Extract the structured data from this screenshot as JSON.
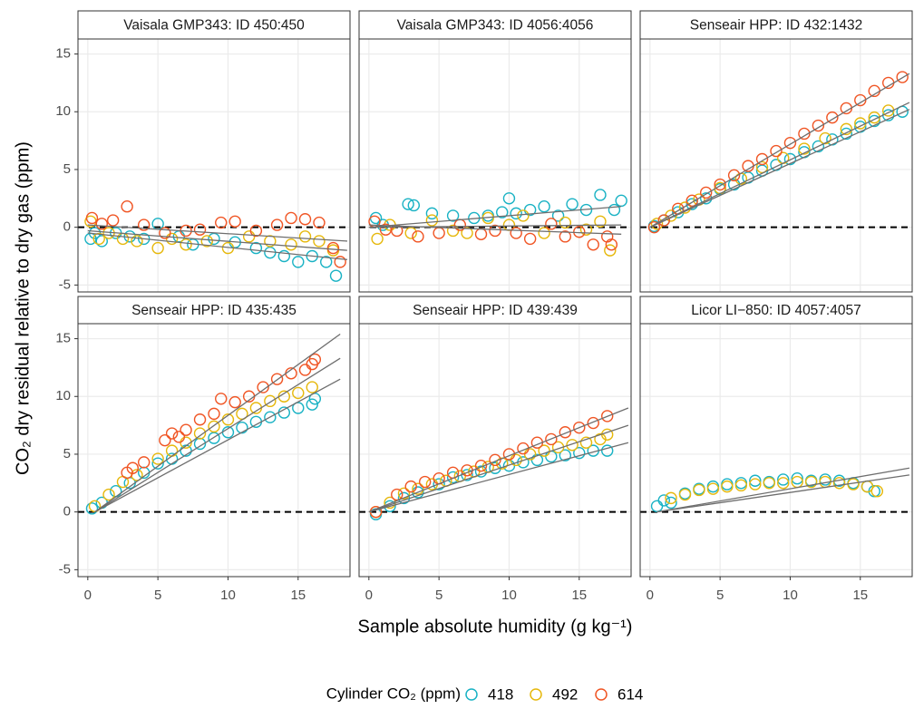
{
  "chart_data": {
    "type": "scatter",
    "x_label": "Sample absolute humidity (g kg⁻¹)",
    "y_label": "CO₂ dry residual relative to dry gas (ppm)",
    "legend_title": "Cylinder CO₂ (ppm)",
    "xlim": [
      -0.7,
      18.7
    ],
    "ylim": [
      -5.6,
      16.3
    ],
    "xticks": [
      0,
      5,
      10,
      15
    ],
    "yticks": [
      -5,
      0,
      5,
      10,
      15
    ],
    "grid": true,
    "hline": 0,
    "series": [
      {
        "name": "418",
        "color": "#19b2c4"
      },
      {
        "name": "492",
        "color": "#e6b80c"
      },
      {
        "name": "614",
        "color": "#f05524"
      }
    ],
    "panels": [
      {
        "title": "Vaisala GMP343: ID 450:450",
        "data": [
          {
            "x": [
              0.2,
              0.5,
              1,
              2,
              3,
              4,
              5,
              6.5,
              7.5,
              9,
              10.5,
              12,
              13,
              14,
              15,
              16,
              17,
              17.7
            ],
            "values": [
              -1,
              -0.5,
              -1.2,
              -0.5,
              -0.8,
              -1,
              0.3,
              -0.8,
              -1.5,
              -1,
              -1.3,
              -1.8,
              -2.2,
              -2.5,
              -3,
              -2.5,
              -3,
              -4.2
            ],
            "fit_x": [
              0,
              18.5
            ],
            "fit_values": [
              -0.5,
              -2.8
            ]
          },
          {
            "x": [
              0.2,
              0.8,
              1.5,
              2.5,
              3.5,
              5,
              6,
              7,
              8.5,
              10,
              11.5,
              13,
              14.5,
              15.5,
              16.5,
              17.5
            ],
            "values": [
              0.5,
              -1,
              -0.5,
              -1,
              -1.2,
              -1.8,
              -1,
              -1.5,
              -1.2,
              -1.8,
              -0.8,
              -1.2,
              -1.5,
              -0.8,
              -1.2,
              -2
            ],
            "fit_x": [
              0,
              18.5
            ],
            "fit_values": [
              -0.3,
              -2
            ]
          },
          {
            "x": [
              0.3,
              1,
              1.8,
              2.8,
              4,
              5.5,
              7,
              8,
              9.5,
              10.5,
              12,
              13.5,
              14.5,
              15.5,
              16.5,
              17.5,
              18
            ],
            "values": [
              0.8,
              0.3,
              0.6,
              1.8,
              0.2,
              -0.5,
              -0.3,
              -0.2,
              0.4,
              0.5,
              -0.3,
              0.2,
              0.8,
              0.7,
              0.4,
              -1.8,
              -3
            ],
            "fit_x": [
              0,
              18.5
            ],
            "fit_values": [
              0.2,
              -1.2
            ]
          }
        ]
      },
      {
        "title": "Vaisala GMP343: ID 4056:4056",
        "data": [
          {
            "x": [
              0.5,
              1,
              2.8,
              3.2,
              4.5,
              6,
              7.5,
              8.5,
              9.5,
              10,
              10.5,
              11.5,
              12.5,
              13.5,
              14.5,
              15.5,
              16.5,
              17.5,
              18
            ],
            "values": [
              0.8,
              0.2,
              2,
              1.9,
              1.2,
              1,
              0.8,
              1,
              1.3,
              2.5,
              1.2,
              1.5,
              1.8,
              1,
              2,
              1.5,
              2.8,
              1.5,
              2.3
            ],
            "fit_x": [
              0,
              18
            ],
            "fit_values": [
              0,
              1.8
            ]
          },
          {
            "x": [
              0.6,
              1.5,
              3,
              4.5,
              6,
              7,
              8.5,
              10,
              11,
              12.5,
              14,
              15.5,
              16.5,
              17.2
            ],
            "values": [
              -1,
              0.2,
              -0.5,
              0.6,
              -0.3,
              -0.5,
              0.8,
              0.2,
              1,
              -0.5,
              0.4,
              -0.2,
              0.5,
              -2
            ],
            "fit_x": [
              0,
              18
            ],
            "fit_values": [
              0,
              0.2
            ]
          },
          {
            "x": [
              0.4,
              1.2,
              2,
              3.5,
              5,
              6.5,
              8,
              9,
              10.5,
              11.5,
              13,
              14,
              15,
              16,
              17,
              17.3
            ],
            "values": [
              0.5,
              -0.2,
              -0.3,
              -0.8,
              -0.5,
              0.2,
              -0.6,
              -0.3,
              -0.5,
              -1,
              0.3,
              -0.8,
              -0.4,
              -1.5,
              -0.8,
              -1.5
            ],
            "fit_x": [
              0,
              18
            ],
            "fit_values": [
              0.2,
              -0.6
            ]
          }
        ]
      },
      {
        "title": "Senseair HPP: ID 432:1432",
        "data": [
          {
            "x": [
              0.3,
              1,
              2,
              3,
              4,
              5,
              6,
              7,
              8,
              9,
              10,
              11,
              12,
              13,
              14,
              15,
              16,
              17,
              18
            ],
            "values": [
              0.1,
              0.6,
              1.3,
              2,
              2.5,
              3.3,
              3.7,
              4.3,
              4.9,
              5.4,
              5.9,
              6.5,
              7,
              7.6,
              8.1,
              8.7,
              9.2,
              9.7,
              10
            ],
            "fit_x": [
              0,
              18.5
            ],
            "fit_values": [
              0,
              10.2
            ]
          },
          {
            "x": [
              0.5,
              1.5,
              2.5,
              3.5,
              5,
              6.5,
              8,
              9.5,
              11,
              12.5,
              14,
              15,
              16,
              17
            ],
            "values": [
              0.3,
              1,
              1.7,
              2.4,
              3.4,
              4.2,
              5.2,
              6,
              6.8,
              7.7,
              8.5,
              9,
              9.5,
              10.1
            ],
            "fit_x": [
              0,
              18.5
            ],
            "fit_values": [
              0,
              10.8
            ]
          },
          {
            "x": [
              0.3,
              1,
              2,
              3,
              4,
              5,
              6,
              7,
              8,
              9,
              10,
              11,
              12,
              13,
              14,
              15,
              16,
              17,
              18
            ],
            "values": [
              0,
              0.6,
              1.6,
              2.3,
              3,
              3.7,
              4.5,
              5.3,
              5.9,
              6.6,
              7.3,
              8.1,
              8.8,
              9.5,
              10.3,
              11,
              11.8,
              12.5,
              13
            ],
            "fit_x": [
              0,
              18.5
            ],
            "fit_values": [
              0,
              13.3
            ]
          }
        ]
      },
      {
        "title": "Senseair HPP: ID 435:435",
        "data": [
          {
            "x": [
              0.3,
              1,
              2,
              3,
              4,
              5,
              6,
              7,
              8,
              9,
              10,
              11,
              12,
              13,
              14,
              15,
              16,
              16.2
            ],
            "values": [
              0.3,
              0.8,
              1.8,
              2.5,
              3.4,
              4.2,
              4.6,
              5.3,
              5.9,
              6.4,
              6.9,
              7.3,
              7.8,
              8.2,
              8.6,
              9,
              9.3,
              9.8
            ],
            "fit_x": [
              0.5,
              18
            ],
            "fit_values": [
              0,
              11.5
            ]
          },
          {
            "x": [
              0.5,
              1.5,
              2.5,
              3.5,
              5,
              6,
              7,
              8,
              9,
              10,
              11,
              12,
              13,
              14,
              15,
              16
            ],
            "values": [
              0.5,
              1.5,
              2.6,
              3.2,
              4.6,
              5.3,
              6,
              6.8,
              7.4,
              8,
              8.5,
              9,
              9.6,
              10,
              10.3,
              10.8
            ],
            "fit_x": [
              0.5,
              18
            ],
            "fit_values": [
              0,
              13.3
            ]
          },
          {
            "x": [
              2.8,
              3.2,
              4,
              5.5,
              6,
              6.5,
              7,
              8,
              9,
              9.5,
              10.5,
              11.5,
              12.5,
              13.5,
              14.5,
              15.5,
              16,
              16.2
            ],
            "values": [
              3.4,
              3.8,
              4.3,
              6.2,
              6.8,
              6.5,
              7.1,
              8,
              8.5,
              9.8,
              9.5,
              10,
              10.8,
              11.5,
              12,
              12.3,
              12.8,
              13.2
            ],
            "fit_x": [
              0.5,
              18
            ],
            "fit_values": [
              0,
              15.4
            ]
          }
        ]
      },
      {
        "title": "Senseair HPP: ID 439:439",
        "data": [
          {
            "x": [
              0.5,
              1.5,
              2.5,
              3.5,
              5,
              6,
              7,
              8,
              9,
              10,
              11,
              12,
              13,
              14,
              15,
              16,
              17
            ],
            "values": [
              -0.2,
              0.5,
              1.2,
              1.7,
              2.4,
              3,
              3.2,
              3.5,
              3.8,
              4,
              4.3,
              4.5,
              4.8,
              4.9,
              5.1,
              5.3,
              5.3
            ],
            "fit_x": [
              0,
              18.5
            ],
            "fit_values": [
              0,
              6
            ]
          },
          {
            "x": [
              0.5,
              1.5,
              2.5,
              3.5,
              4.5,
              5.5,
              6.5,
              7.5,
              8.5,
              9.5,
              10.5,
              11.5,
              12.5,
              13.5,
              14.5,
              15.5,
              16.5,
              17
            ],
            "values": [
              0,
              0.8,
              1.6,
              2,
              2.4,
              2.7,
              3.1,
              3.5,
              3.9,
              4.2,
              4.5,
              5,
              5.3,
              5.6,
              5.8,
              6,
              6.3,
              6.7
            ],
            "fit_x": [
              0,
              18.5
            ],
            "fit_values": [
              0,
              7.5
            ]
          },
          {
            "x": [
              0.5,
              2,
              3,
              4,
              5,
              6,
              7,
              8,
              9,
              10,
              11,
              12,
              13,
              14,
              15,
              16,
              17
            ],
            "values": [
              0,
              1.5,
              2.2,
              2.6,
              2.9,
              3.4,
              3.6,
              4,
              4.5,
              5,
              5.5,
              6,
              6.3,
              6.9,
              7.3,
              7.7,
              8.3
            ],
            "fit_x": [
              0,
              18.5
            ],
            "fit_values": [
              0,
              9
            ]
          }
        ]
      },
      {
        "title": "Licor LI−850: ID 4057:4057",
        "data": [
          {
            "x": [
              0.5,
              1,
              1.5,
              2.5,
              3.5,
              4.5,
              5.5,
              6.5,
              7.5,
              8.5,
              9.5,
              10.5,
              11.5,
              12.5,
              13.5,
              14.5,
              15.5,
              16
            ],
            "values": [
              0.5,
              1,
              0.8,
              1.6,
              2,
              2.2,
              2.4,
              2.5,
              2.7,
              2.6,
              2.8,
              2.9,
              2.7,
              2.8,
              2.7,
              2.5,
              2.2,
              1.8
            ],
            "fit_x": [
              0.5,
              18.5
            ],
            "fit_values": [
              0,
              3.8
            ]
          },
          {
            "x": [
              1.5,
              2.5,
              3.5,
              4.5,
              5.5,
              6.5,
              7.5,
              8.5,
              9.5,
              10.5,
              11.5,
              12.5,
              13.5,
              14.5,
              15.5,
              16.2
            ],
            "values": [
              1.2,
              1.5,
              1.9,
              2,
              2.2,
              2.3,
              2.4,
              2.5,
              2.5,
              2.6,
              2.6,
              2.6,
              2.5,
              2.4,
              2.2,
              1.8
            ],
            "fit_x": [
              0.5,
              18.5
            ],
            "fit_values": [
              0,
              3.2
            ]
          }
        ]
      }
    ]
  }
}
